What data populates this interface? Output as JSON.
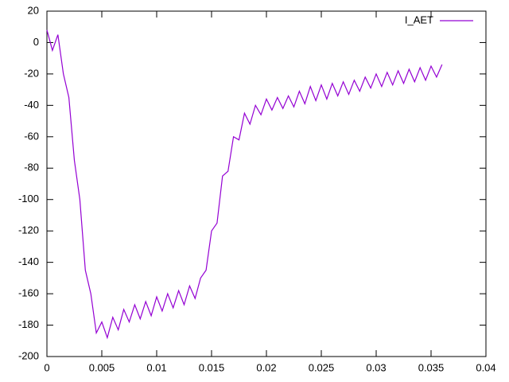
{
  "chart_data": {
    "type": "line",
    "x": [
      0,
      0.0005,
      0.001,
      0.0015,
      0.002,
      0.0025,
      0.003,
      0.0035,
      0.004,
      0.0045,
      0.005,
      0.0055,
      0.006,
      0.0065,
      0.007,
      0.0075,
      0.008,
      0.0085,
      0.009,
      0.0095,
      0.01,
      0.0105,
      0.011,
      0.0115,
      0.012,
      0.0125,
      0.013,
      0.0135,
      0.014,
      0.0145,
      0.015,
      0.0155,
      0.016,
      0.0165,
      0.017,
      0.0175,
      0.018,
      0.0185,
      0.019,
      0.0195,
      0.02,
      0.0205,
      0.021,
      0.0215,
      0.022,
      0.0225,
      0.023,
      0.0235,
      0.024,
      0.0245,
      0.025,
      0.0255,
      0.026,
      0.0265,
      0.027,
      0.0275,
      0.028,
      0.0285,
      0.029,
      0.0295,
      0.03,
      0.0305,
      0.031,
      0.0315,
      0.032,
      0.0325,
      0.033,
      0.0335,
      0.034,
      0.0345,
      0.035,
      0.0355,
      0.036
    ],
    "series": [
      {
        "name": "I_AET",
        "color": "#9400d3",
        "values": [
          8,
          -5,
          5,
          -20,
          -35,
          -75,
          -100,
          -145,
          -160,
          -185,
          -178,
          -188,
          -175,
          -183,
          -170,
          -178,
          -167,
          -176,
          -165,
          -174,
          -162,
          -171,
          -160,
          -169,
          -158,
          -167,
          -155,
          -163,
          -150,
          -145,
          -120,
          -115,
          -85,
          -82,
          -60,
          -62,
          -45,
          -52,
          -40,
          -46,
          -36,
          -43,
          -35,
          -42,
          -34,
          -41,
          -31,
          -39,
          -28,
          -37,
          -27,
          -36,
          -26,
          -34,
          -25,
          -33,
          -24,
          -31,
          -22,
          -29,
          -20,
          -28,
          -19,
          -27,
          -18,
          -26,
          -17,
          -25,
          -16,
          -24,
          -15,
          -22,
          -14
        ]
      }
    ],
    "xlim": [
      0,
      0.04
    ],
    "xticks": [
      0,
      0.005,
      0.01,
      0.015,
      0.02,
      0.025,
      0.03,
      0.035,
      0.04
    ],
    "ylim": [
      -200,
      20
    ],
    "yticks": [
      -200,
      -180,
      -160,
      -140,
      -120,
      -100,
      -80,
      -60,
      -40,
      -20,
      0,
      20
    ],
    "grid": false,
    "legend": "top-right"
  }
}
